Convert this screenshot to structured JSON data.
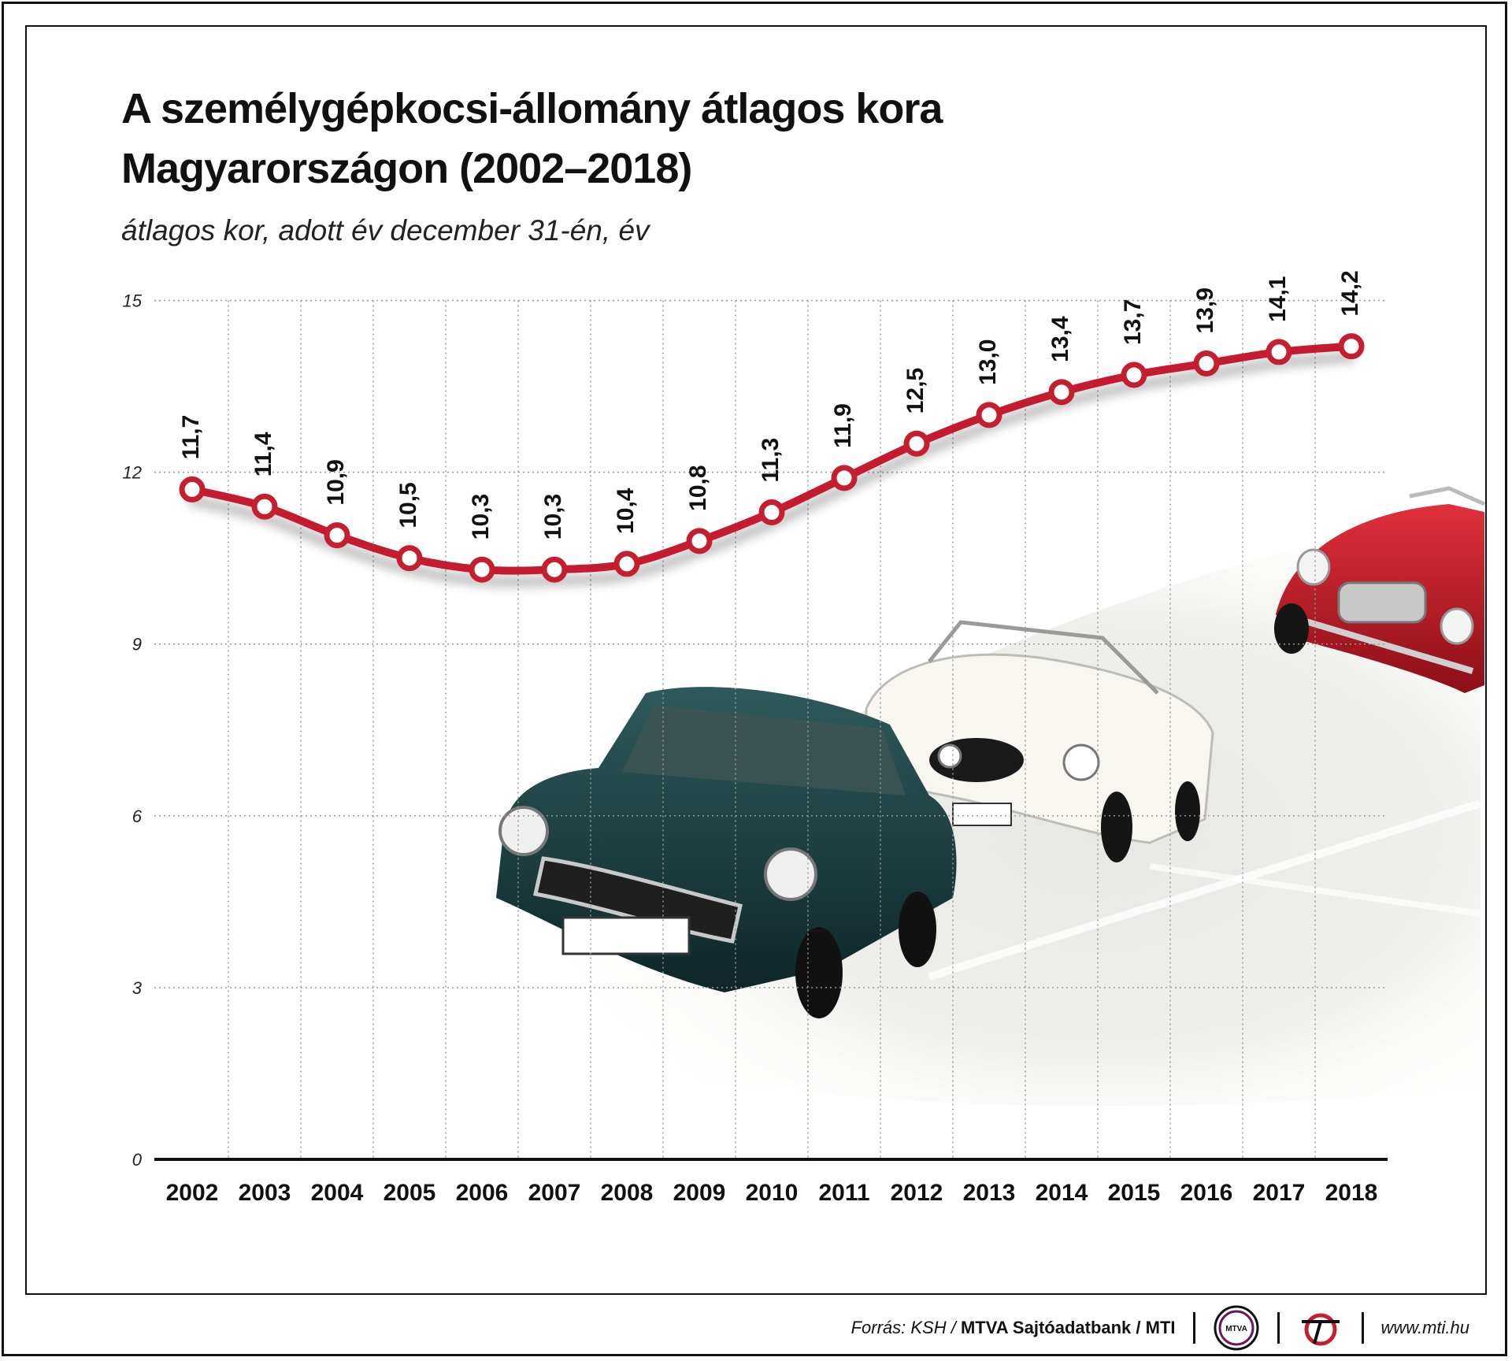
{
  "title_line1": "A személygépkocsi-állomány átlagos kora",
  "title_line2": "Magyarországon (2002–2018)",
  "subtitle": "átlagos kor, adott év december 31-én, év",
  "chart_data": {
    "type": "line",
    "title": "A személygépkocsi-állomány átlagos kora Magyarországon (2002–2018)",
    "subtitle": "átlagos kor, adott év december 31-én, év",
    "categories": [
      "2002",
      "2003",
      "2004",
      "2005",
      "2006",
      "2007",
      "2008",
      "2009",
      "2010",
      "2011",
      "2012",
      "2013",
      "2014",
      "2015",
      "2016",
      "2017",
      "2018"
    ],
    "values": [
      11.7,
      11.4,
      10.9,
      10.5,
      10.3,
      10.3,
      10.4,
      10.8,
      11.3,
      11.9,
      12.5,
      13.0,
      13.4,
      13.7,
      13.9,
      14.1,
      14.2
    ],
    "value_labels": [
      "11,7",
      "11,4",
      "10,9",
      "10,5",
      "10,3",
      "10,3",
      "10,4",
      "10,8",
      "11,3",
      "11,9",
      "12,5",
      "13,0",
      "13,4",
      "13,7",
      "13,9",
      "14,1",
      "14,2"
    ],
    "yticks": [
      "0",
      "3",
      "6",
      "9",
      "12",
      "15"
    ],
    "ylim": [
      0,
      15
    ],
    "grid": true,
    "line_color": "#c41e2f",
    "marker_fill": "#ffffff"
  },
  "footer": {
    "source_label": "Forrás: KSH /",
    "source_bold": "MTVA Sajtóadatbank / MTI",
    "logo1_text": "MTVA",
    "url": "www.mti.hu"
  }
}
